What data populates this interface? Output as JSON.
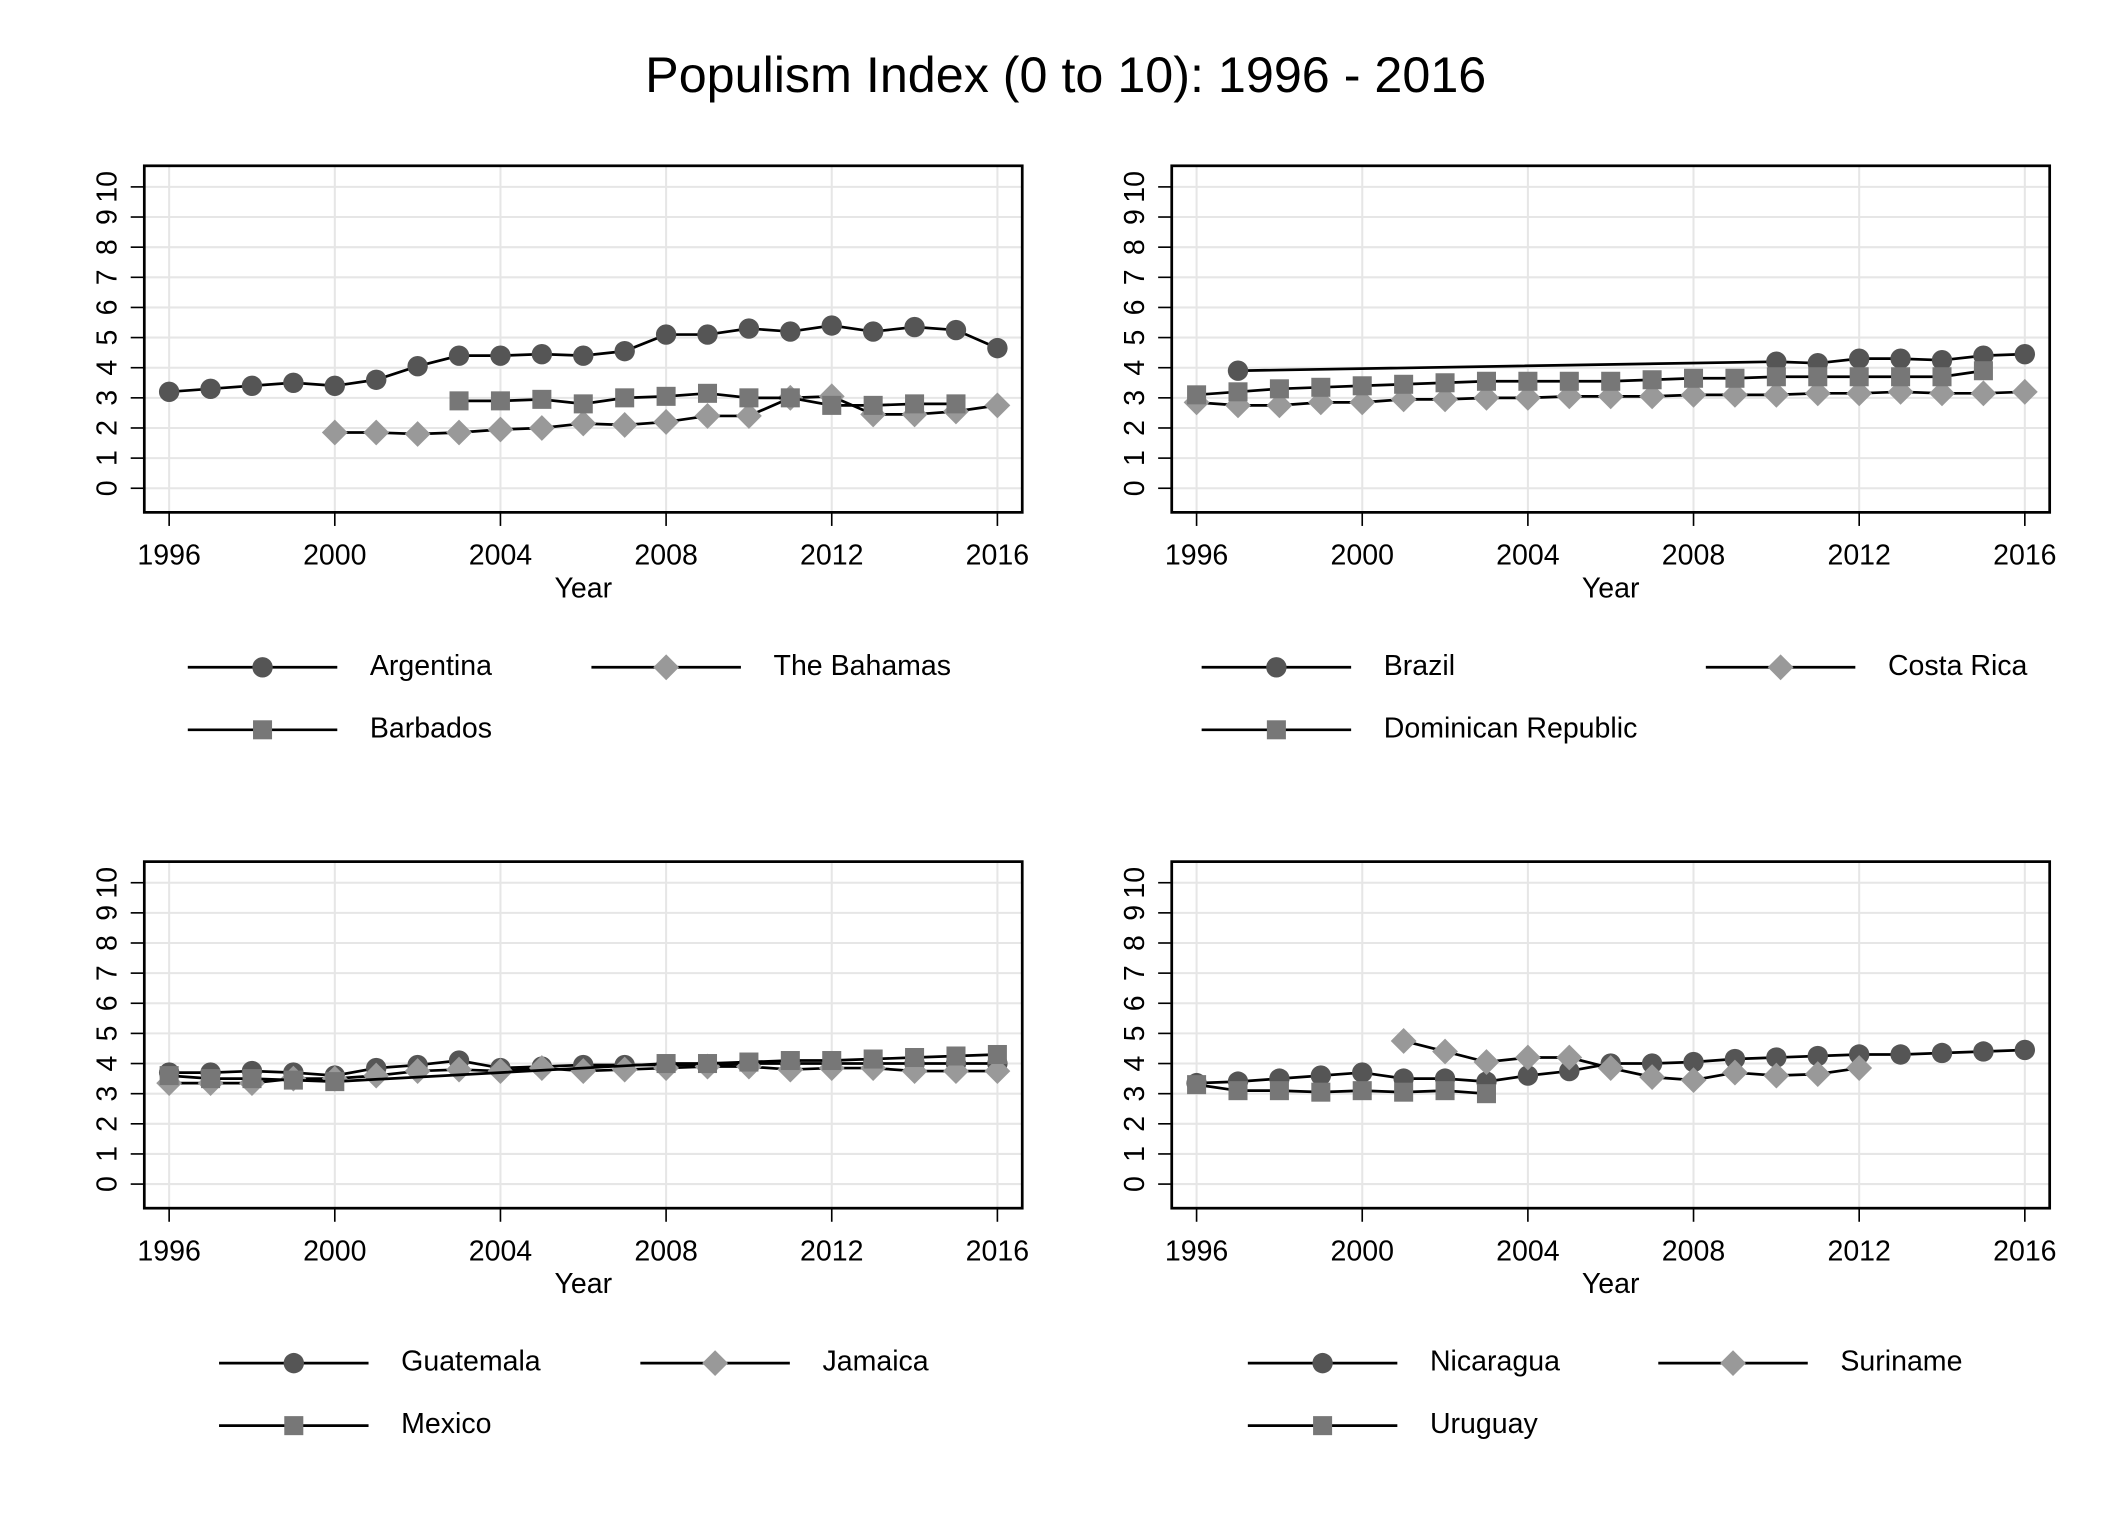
{
  "title": "Populism Index (0 to 10): 1996 - 2016",
  "chart_data": [
    {
      "type": "line",
      "xlabel": "Year",
      "xlim": [
        1995.4,
        2016.6
      ],
      "xticks": [
        1996,
        2000,
        2004,
        2008,
        2012,
        2016
      ],
      "ylim": [
        -0.8,
        10.7
      ],
      "yticks": [
        0,
        1,
        2,
        3,
        4,
        5,
        6,
        7,
        8,
        9,
        10
      ],
      "grid": true,
      "series": [
        {
          "name": "Argentina",
          "marker": "circle",
          "color": "#555555",
          "x": [
            1996,
            1997,
            1998,
            1999,
            2000,
            2001,
            2002,
            2003,
            2004,
            2005,
            2006,
            2007,
            2008,
            2009,
            2010,
            2011,
            2012,
            2013,
            2014,
            2015,
            2016
          ],
          "values": [
            3.2,
            3.3,
            3.4,
            3.5,
            3.4,
            3.6,
            4.05,
            4.4,
            4.4,
            4.45,
            4.4,
            4.55,
            5.1,
            5.1,
            5.3,
            5.2,
            5.4,
            5.2,
            5.35,
            5.25,
            4.65
          ]
        },
        {
          "name": "The Bahamas",
          "marker": "diamond",
          "color": "#999999",
          "x": [
            2000,
            2001,
            2002,
            2003,
            2004,
            2005,
            2006,
            2007,
            2008,
            2009,
            2010,
            2011,
            2012,
            2013,
            2014,
            2015,
            2016
          ],
          "values": [
            1.85,
            1.85,
            1.8,
            1.85,
            1.95,
            2.0,
            2.15,
            2.1,
            2.2,
            2.4,
            2.4,
            3.0,
            3.05,
            2.45,
            2.45,
            2.55,
            2.75
          ]
        },
        {
          "name": "Barbados",
          "marker": "square",
          "color": "#777777",
          "x": [
            2003,
            2004,
            2005,
            2006,
            2007,
            2008,
            2009,
            2010,
            2011,
            2012,
            2013,
            2014,
            2015
          ],
          "values": [
            2.9,
            2.9,
            2.95,
            2.8,
            3.0,
            3.05,
            3.15,
            3.0,
            3.0,
            2.75,
            2.75,
            2.8,
            2.8
          ]
        }
      ]
    },
    {
      "type": "line",
      "xlabel": "Year",
      "xlim": [
        1995.4,
        2016.6
      ],
      "xticks": [
        1996,
        2000,
        2004,
        2008,
        2012,
        2016
      ],
      "ylim": [
        -0.8,
        10.7
      ],
      "yticks": [
        0,
        1,
        2,
        3,
        4,
        5,
        6,
        7,
        8,
        9,
        10
      ],
      "grid": true,
      "series": [
        {
          "name": "Brazil",
          "marker": "circle",
          "color": "#555555",
          "x": [
            1997,
            2010,
            2011,
            2012,
            2013,
            2014,
            2015,
            2016
          ],
          "values": [
            3.9,
            4.2,
            4.15,
            4.3,
            4.3,
            4.25,
            4.4,
            4.45
          ]
        },
        {
          "name": "Costa Rica",
          "marker": "diamond",
          "color": "#999999",
          "x": [
            1996,
            1997,
            1998,
            1999,
            2000,
            2001,
            2002,
            2003,
            2004,
            2005,
            2006,
            2007,
            2008,
            2009,
            2010,
            2011,
            2012,
            2013,
            2014,
            2015,
            2016
          ],
          "values": [
            2.85,
            2.75,
            2.75,
            2.85,
            2.85,
            2.95,
            2.95,
            3.0,
            3.0,
            3.05,
            3.05,
            3.05,
            3.1,
            3.1,
            3.1,
            3.15,
            3.15,
            3.2,
            3.15,
            3.15,
            3.2
          ]
        },
        {
          "name": "Dominican Republic",
          "marker": "square",
          "color": "#777777",
          "x": [
            1996,
            1997,
            1998,
            1999,
            2000,
            2001,
            2002,
            2003,
            2004,
            2005,
            2006,
            2007,
            2008,
            2009,
            2010,
            2011,
            2012,
            2013,
            2014,
            2015
          ],
          "values": [
            3.1,
            3.2,
            3.3,
            3.35,
            3.4,
            3.45,
            3.5,
            3.55,
            3.55,
            3.55,
            3.55,
            3.6,
            3.65,
            3.65,
            3.7,
            3.7,
            3.7,
            3.7,
            3.7,
            3.9
          ]
        }
      ]
    },
    {
      "type": "line",
      "xlabel": "Year",
      "xlim": [
        1995.4,
        2016.6
      ],
      "xticks": [
        1996,
        2000,
        2004,
        2008,
        2012,
        2016
      ],
      "ylim": [
        -0.8,
        10.7
      ],
      "yticks": [
        0,
        1,
        2,
        3,
        4,
        5,
        6,
        7,
        8,
        9,
        10
      ],
      "grid": true,
      "series": [
        {
          "name": "Guatemala",
          "marker": "circle",
          "color": "#555555",
          "x": [
            1996,
            1997,
            1998,
            1999,
            2000,
            2001,
            2002,
            2003,
            2004,
            2005,
            2006,
            2007,
            2008,
            2009,
            2010,
            2011,
            2012,
            2013,
            2014,
            2015,
            2016
          ],
          "values": [
            3.7,
            3.7,
            3.75,
            3.7,
            3.6,
            3.85,
            3.95,
            4.1,
            3.85,
            3.9,
            3.95,
            3.95,
            3.95,
            3.95,
            4.0,
            4.0,
            4.0,
            4.0,
            4.0,
            4.0,
            4.0
          ]
        },
        {
          "name": "Jamaica",
          "marker": "diamond",
          "color": "#999999",
          "x": [
            1996,
            1997,
            1998,
            1999,
            2000,
            2001,
            2002,
            2003,
            2004,
            2005,
            2006,
            2007,
            2008,
            2009,
            2010,
            2011,
            2012,
            2013,
            2014,
            2015,
            2016
          ],
          "values": [
            3.35,
            3.35,
            3.35,
            3.5,
            3.5,
            3.6,
            3.75,
            3.8,
            3.75,
            3.85,
            3.75,
            3.8,
            3.85,
            3.9,
            3.9,
            3.8,
            3.85,
            3.85,
            3.75,
            3.75,
            3.75
          ]
        },
        {
          "name": "Mexico",
          "marker": "square",
          "color": "#777777",
          "x": [
            1996,
            1997,
            1998,
            1999,
            2000,
            2008,
            2009,
            2010,
            2011,
            2012,
            2013,
            2014,
            2015,
            2016
          ],
          "values": [
            3.6,
            3.5,
            3.5,
            3.45,
            3.4,
            4.0,
            4.0,
            4.05,
            4.1,
            4.1,
            4.15,
            4.2,
            4.25,
            4.3
          ]
        }
      ]
    },
    {
      "type": "line",
      "xlabel": "Year",
      "xlim": [
        1995.4,
        2016.6
      ],
      "xticks": [
        1996,
        2000,
        2004,
        2008,
        2012,
        2016
      ],
      "ylim": [
        -0.8,
        10.7
      ],
      "yticks": [
        0,
        1,
        2,
        3,
        4,
        5,
        6,
        7,
        8,
        9,
        10
      ],
      "grid": true,
      "series": [
        {
          "name": "Nicaragua",
          "marker": "circle",
          "color": "#555555",
          "x": [
            1996,
            1997,
            1998,
            1999,
            2000,
            2001,
            2002,
            2003,
            2004,
            2005,
            2006,
            2007,
            2008,
            2009,
            2010,
            2011,
            2012,
            2013,
            2014,
            2015,
            2016
          ],
          "values": [
            3.35,
            3.4,
            3.5,
            3.6,
            3.7,
            3.5,
            3.5,
            3.4,
            3.6,
            3.75,
            4.0,
            4.0,
            4.05,
            4.15,
            4.2,
            4.25,
            4.3,
            4.3,
            4.35,
            4.4,
            4.45
          ]
        },
        {
          "name": "Suriname",
          "marker": "diamond",
          "color": "#999999",
          "x": [
            2001,
            2002,
            2003,
            2004,
            2005,
            2006,
            2007,
            2008,
            2009,
            2010,
            2011,
            2012
          ],
          "values": [
            4.75,
            4.4,
            4.05,
            4.2,
            4.2,
            3.85,
            3.55,
            3.45,
            3.7,
            3.6,
            3.65,
            3.85
          ]
        },
        {
          "name": "Uruguay",
          "marker": "square",
          "color": "#777777",
          "x": [
            1996,
            1997,
            1998,
            1999,
            2000,
            2001,
            2002,
            2003
          ],
          "values": [
            3.3,
            3.1,
            3.1,
            3.05,
            3.1,
            3.05,
            3.1,
            3.0
          ]
        }
      ]
    }
  ]
}
